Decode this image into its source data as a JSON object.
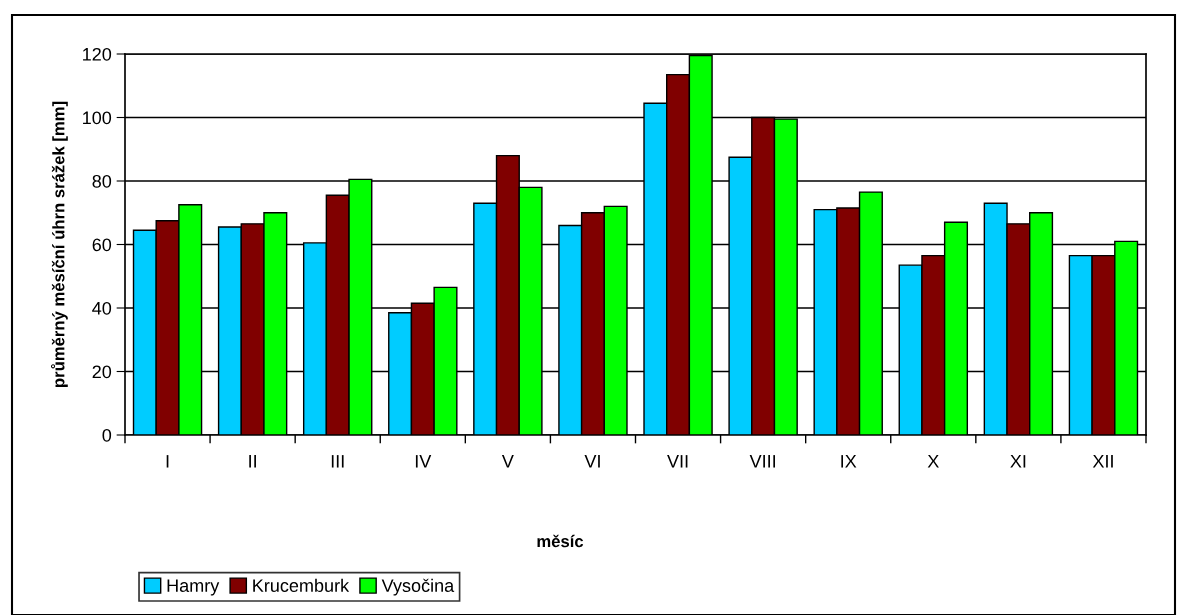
{
  "chart_data": {
    "type": "bar",
    "xlabel": "měsíc",
    "ylabel": "průměrný měsíční úhrn srážek [mm]",
    "categories": [
      "I",
      "II",
      "III",
      "IV",
      "V",
      "VI",
      "VII",
      "VIII",
      "IX",
      "X",
      "XI",
      "XII"
    ],
    "series": [
      {
        "name": "Hamry",
        "color": "#00ccff",
        "values": [
          64.5,
          65.5,
          60.5,
          38.5,
          73,
          66,
          104.5,
          87.5,
          71,
          53.5,
          73,
          56.5
        ]
      },
      {
        "name": "Krucemburk",
        "color": "#800000",
        "values": [
          67.5,
          66.5,
          75.5,
          41.5,
          88,
          70,
          113.5,
          100,
          71.5,
          56.5,
          66.5,
          56.5
        ]
      },
      {
        "name": "Vysočina",
        "color": "#00ff00",
        "values": [
          72.5,
          70,
          80.5,
          46.5,
          78,
          72,
          119.5,
          99.5,
          76.5,
          67,
          70,
          61
        ]
      }
    ],
    "ylim": [
      0,
      120
    ],
    "yticks": [
      0,
      20,
      40,
      60,
      80,
      100,
      120
    ],
    "grid": "y",
    "legend": "bottom left"
  }
}
